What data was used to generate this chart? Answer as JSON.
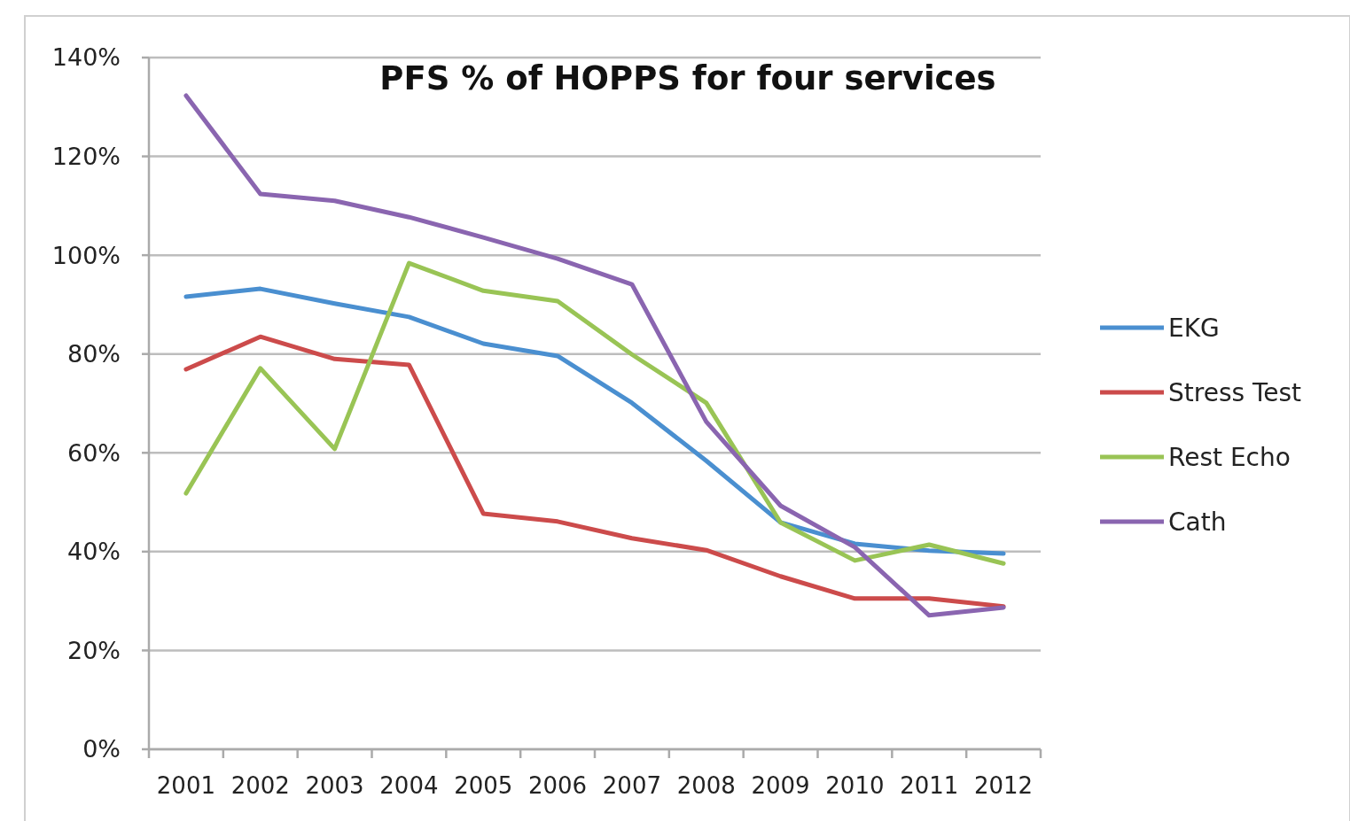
{
  "chart_data": {
    "type": "line",
    "title": "PFS % of HOPPS for four services",
    "categories": [
      "2001",
      "2002",
      "2003",
      "2004",
      "2005",
      "2006",
      "2007",
      "2008",
      "2009",
      "2010",
      "2011",
      "2012"
    ],
    "series": [
      {
        "name": "EKG",
        "color": "#4a8fd0",
        "values": [
          91.6,
          93.2,
          90.2,
          87.5,
          82.1,
          79.6,
          70.1,
          58.4,
          45.9,
          41.6,
          40.2,
          39.6
        ]
      },
      {
        "name": "Stress Test",
        "color": "#cc4b4b",
        "values": [
          76.9,
          83.5,
          79.0,
          77.8,
          47.7,
          46.1,
          42.7,
          40.3,
          35.0,
          30.5,
          30.5,
          28.9
        ]
      },
      {
        "name": "Rest Echo",
        "color": "#99c455",
        "values": [
          51.8,
          77.1,
          60.8,
          98.4,
          92.8,
          90.7,
          79.9,
          70.1,
          45.9,
          38.2,
          41.4,
          37.6
        ]
      },
      {
        "name": "Cath",
        "color": "#8a65b0",
        "values": [
          132.3,
          112.4,
          111.0,
          107.7,
          103.6,
          99.3,
          94.1,
          66.3,
          49.3,
          40.9,
          27.1,
          28.7
        ]
      }
    ],
    "ylim": [
      0,
      140
    ],
    "yticks": [
      {
        "value": 0,
        "label": "0%"
      },
      {
        "value": 20,
        "label": "20%"
      },
      {
        "value": 40,
        "label": "40%"
      },
      {
        "value": 60,
        "label": "60%"
      },
      {
        "value": 80,
        "label": "80%"
      },
      {
        "value": 100,
        "label": "100%"
      },
      {
        "value": 120,
        "label": "120%"
      },
      {
        "value": 140,
        "label": "140%"
      }
    ],
    "grid": "y",
    "legend": "right",
    "marker": "none",
    "line_style": "solid"
  }
}
